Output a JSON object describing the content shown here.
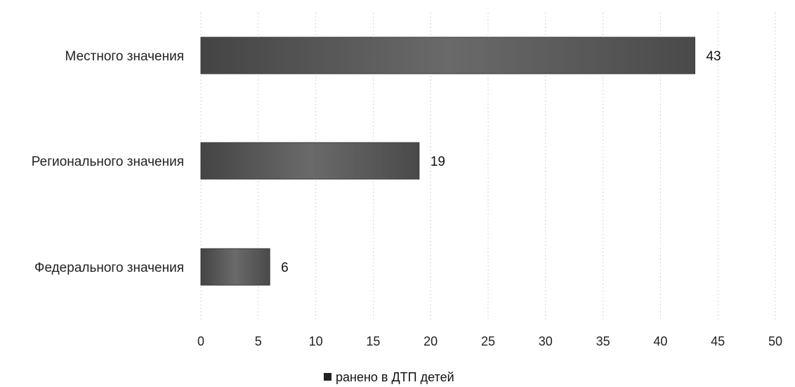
{
  "colors": {
    "bar": "#5a5a5a",
    "bar_dark": "#3a3a3a",
    "grid": "#d6d6d6",
    "legend_marker": "#222222"
  },
  "chart_data": {
    "type": "bar",
    "orientation": "horizontal",
    "categories": [
      "Местного значения",
      "Регионального значения",
      "Федерального значения"
    ],
    "series": [
      {
        "name": "ранено в ДТП детей",
        "values": [
          43,
          19,
          6
        ]
      }
    ],
    "data_labels": [
      "43",
      "19",
      "6"
    ],
    "xlim": [
      0,
      50
    ],
    "x_ticks": [
      0,
      5,
      10,
      15,
      20,
      25,
      30,
      35,
      40,
      45,
      50
    ],
    "x_tick_labels": [
      "0",
      "5",
      "10",
      "15",
      "20",
      "25",
      "30",
      "35",
      "40",
      "45",
      "50"
    ],
    "grid": true,
    "legend": {
      "placement": "bottom",
      "entries": [
        "ранено в ДТП детей"
      ]
    }
  }
}
